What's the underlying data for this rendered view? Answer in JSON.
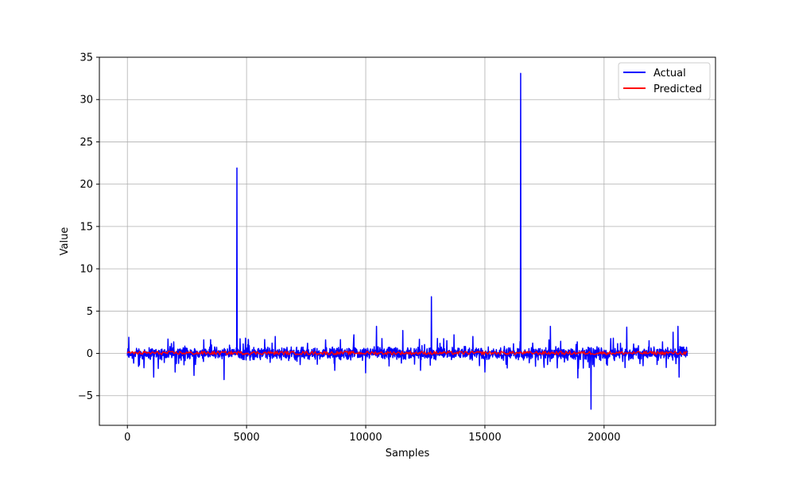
{
  "chart_data": {
    "type": "line",
    "title": "",
    "xlabel": "Samples",
    "ylabel": "Value",
    "xlim": [
      -1175,
      24675
    ],
    "ylim": [
      -8.5,
      35
    ],
    "xticks": [
      0,
      5000,
      10000,
      15000,
      20000
    ],
    "xtick_labels": [
      "0",
      "5000",
      "10000",
      "15000",
      "20000"
    ],
    "yticks": [
      -5,
      0,
      5,
      10,
      15,
      20,
      25,
      30,
      35
    ],
    "ytick_labels": [
      "−5",
      "0",
      "5",
      "10",
      "15",
      "20",
      "25",
      "30",
      "35"
    ],
    "grid": true,
    "legend_position": "top-right",
    "series": [
      {
        "name": "Actual",
        "color": "#0000ff",
        "n_samples": 23500,
        "noise_range": [
          -0.9,
          0.9
        ],
        "spikes": [
          {
            "x": 60,
            "y": 1.9
          },
          {
            "x": 700,
            "y": -1.7
          },
          {
            "x": 1100,
            "y": -2.8
          },
          {
            "x": 2000,
            "y": -2.2
          },
          {
            "x": 2800,
            "y": -2.6
          },
          {
            "x": 3200,
            "y": 1.6
          },
          {
            "x": 4050,
            "y": -3.1
          },
          {
            "x": 4600,
            "y": 21.9
          },
          {
            "x": 4950,
            "y": 1.8
          },
          {
            "x": 6200,
            "y": 2.0
          },
          {
            "x": 8700,
            "y": -2.0
          },
          {
            "x": 9500,
            "y": 2.2
          },
          {
            "x": 10000,
            "y": -2.3
          },
          {
            "x": 10450,
            "y": 3.2
          },
          {
            "x": 11550,
            "y": 2.7
          },
          {
            "x": 12300,
            "y": -2.0
          },
          {
            "x": 12750,
            "y": 6.7
          },
          {
            "x": 13700,
            "y": 2.2
          },
          {
            "x": 14500,
            "y": 2.0
          },
          {
            "x": 15000,
            "y": -2.2
          },
          {
            "x": 16500,
            "y": 33.1
          },
          {
            "x": 17750,
            "y": 3.2
          },
          {
            "x": 18900,
            "y": -2.9
          },
          {
            "x": 19450,
            "y": -6.6
          },
          {
            "x": 20950,
            "y": 3.1
          },
          {
            "x": 22900,
            "y": 2.5
          },
          {
            "x": 23100,
            "y": 3.2
          },
          {
            "x": 23150,
            "y": -2.8
          }
        ]
      },
      {
        "name": "Predicted",
        "color": "#ff0000",
        "n_samples": 23500,
        "values_range": [
          -0.15,
          0.25
        ]
      }
    ]
  }
}
